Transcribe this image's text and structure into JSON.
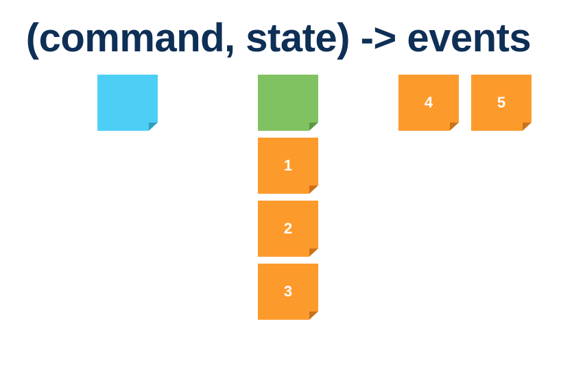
{
  "title": "(command, state) -> events",
  "notes": {
    "command": {
      "color": "#4dcff5"
    },
    "state": {
      "color": "#80c261"
    },
    "events": [
      {
        "label": "1"
      },
      {
        "label": "2"
      },
      {
        "label": "3"
      },
      {
        "label": "4"
      },
      {
        "label": "5"
      }
    ],
    "event_color": "#fd9a2c"
  }
}
